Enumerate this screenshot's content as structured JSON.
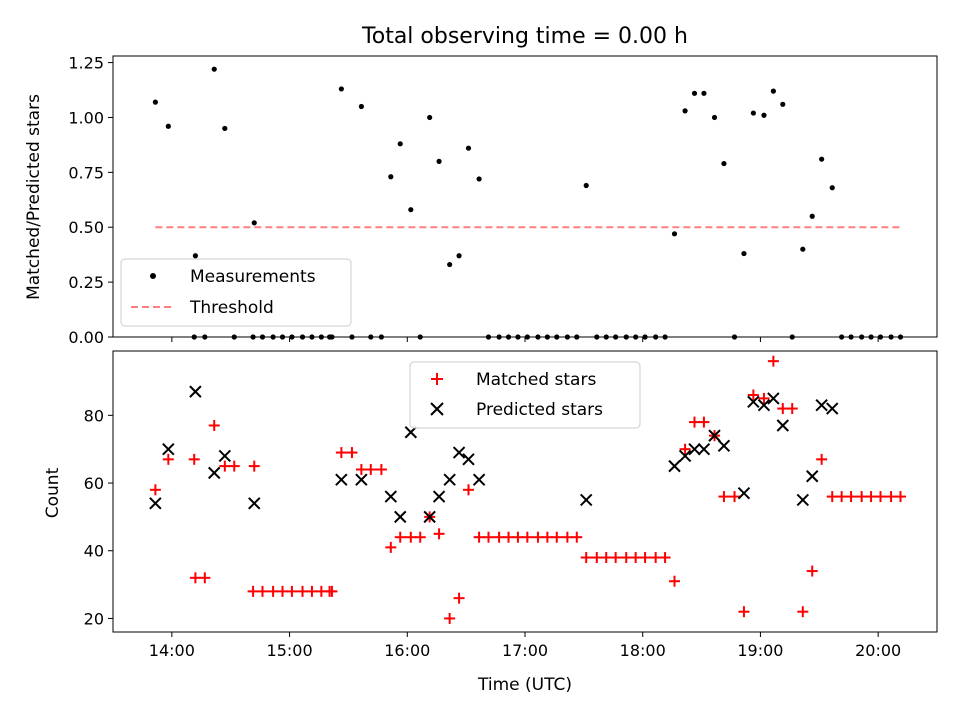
{
  "chart_data": [
    {
      "type": "scatter",
      "title": "Total observing time = 0.00 h",
      "ylabel": "Matched/Predicted stars",
      "xlabel": "",
      "xlim": [
        13.5,
        20.5
      ],
      "ylim": [
        0,
        1.28
      ],
      "yticks": [
        "0.00",
        "0.25",
        "0.50",
        "0.75",
        "1.00",
        "1.25"
      ],
      "ytick_values": [
        0,
        0.25,
        0.5,
        0.75,
        1.0,
        1.25
      ],
      "xticks": [
        14,
        15,
        16,
        17,
        18,
        19,
        20
      ],
      "xtick_labels_shown": false,
      "legend_position": "lower-left",
      "series": [
        {
          "name": "Measurements",
          "style": "dot",
          "color": "#000000",
          "x": [
            13.86,
            13.97,
            14.2,
            14.36,
            14.45,
            14.7,
            15.44,
            15.61,
            15.86,
            15.94,
            16.03,
            16.19,
            16.27,
            16.36,
            16.44,
            16.52,
            16.61,
            17.52,
            18.27,
            18.36,
            18.44,
            18.52,
            18.61,
            18.69,
            18.86,
            18.94,
            19.03,
            19.11,
            19.19,
            19.36,
            19.44,
            19.52,
            19.61,
            14.19,
            14.28,
            14.53,
            14.69,
            14.77,
            14.86,
            14.94,
            15.02,
            15.11,
            15.19,
            15.27,
            15.34,
            15.36,
            15.53,
            15.69,
            15.78,
            16.11,
            16.69,
            16.78,
            16.86,
            16.94,
            17.02,
            17.11,
            17.19,
            17.27,
            17.36,
            17.44,
            17.61,
            17.69,
            17.77,
            17.86,
            17.94,
            18.02,
            18.11,
            18.19,
            18.78,
            19.27,
            19.69,
            19.77,
            19.86,
            19.94,
            20.02,
            20.11,
            20.19
          ],
          "y": [
            1.07,
            0.96,
            0.37,
            1.22,
            0.95,
            0.52,
            1.13,
            1.05,
            0.73,
            0.88,
            0.58,
            1.0,
            0.8,
            0.33,
            0.37,
            0.86,
            0.72,
            0.69,
            0.47,
            1.03,
            1.11,
            1.11,
            1.0,
            0.79,
            0.38,
            1.02,
            1.01,
            1.12,
            1.06,
            0.4,
            0.55,
            0.81,
            0.68,
            0,
            0,
            0,
            0,
            0,
            0,
            0,
            0,
            0,
            0,
            0,
            0,
            0,
            0,
            0,
            0,
            0,
            0,
            0,
            0,
            0,
            0,
            0,
            0,
            0,
            0,
            0,
            0,
            0,
            0,
            0,
            0,
            0,
            0,
            0,
            0,
            0,
            0,
            0,
            0,
            0,
            0,
            0,
            0
          ]
        },
        {
          "name": "Threshold",
          "style": "dashed-line",
          "color": "#ff7f7f",
          "x": [
            13.86,
            20.19
          ],
          "y": [
            0.5,
            0.5
          ]
        }
      ]
    },
    {
      "type": "scatter",
      "title": "",
      "ylabel": "Count",
      "xlabel": "Time (UTC)",
      "xlim": [
        13.5,
        20.5
      ],
      "ylim": [
        16,
        99
      ],
      "yticks": [
        "20",
        "40",
        "60",
        "80"
      ],
      "ytick_values": [
        20,
        40,
        60,
        80
      ],
      "xticks": [
        14,
        15,
        16,
        17,
        18,
        19,
        20
      ],
      "xtick_labels": [
        "14:00",
        "15:00",
        "16:00",
        "17:00",
        "18:00",
        "19:00",
        "20:00"
      ],
      "legend_position": "upper-center",
      "series": [
        {
          "name": "Matched stars",
          "marker": "plus",
          "color": "#ff0000",
          "x": [
            13.86,
            13.97,
            14.19,
            14.2,
            14.28,
            14.36,
            14.45,
            14.53,
            14.69,
            14.7,
            14.77,
            14.86,
            14.94,
            15.02,
            15.11,
            15.19,
            15.27,
            15.34,
            15.36,
            15.44,
            15.53,
            15.61,
            15.69,
            15.78,
            15.86,
            15.94,
            16.03,
            16.11,
            16.19,
            16.27,
            16.36,
            16.44,
            16.52,
            16.61,
            16.69,
            16.78,
            16.86,
            16.94,
            17.02,
            17.11,
            17.19,
            17.27,
            17.36,
            17.44,
            17.52,
            17.61,
            17.69,
            17.77,
            17.86,
            17.94,
            18.02,
            18.11,
            18.19,
            18.27,
            18.36,
            18.44,
            18.52,
            18.61,
            18.69,
            18.78,
            18.86,
            18.94,
            19.03,
            19.11,
            19.19,
            19.27,
            19.36,
            19.44,
            19.52,
            19.61,
            19.69,
            19.77,
            19.86,
            19.94,
            20.02,
            20.11,
            20.19
          ],
          "y": [
            58,
            67,
            67,
            32,
            32,
            77,
            65,
            65,
            28,
            65,
            28,
            28,
            28,
            28,
            28,
            28,
            28,
            28,
            28,
            69,
            69,
            64,
            64,
            64,
            41,
            44,
            44,
            44,
            50,
            45,
            20,
            26,
            58,
            44,
            44,
            44,
            44,
            44,
            44,
            44,
            44,
            44,
            44,
            44,
            38,
            38,
            38,
            38,
            38,
            38,
            38,
            38,
            38,
            31,
            70,
            78,
            78,
            74,
            56,
            56,
            22,
            86,
            85,
            96,
            82,
            82,
            22,
            34,
            67,
            56,
            56,
            56,
            56,
            56,
            56,
            56,
            56
          ]
        },
        {
          "name": "Predicted stars",
          "marker": "x",
          "color": "#000000",
          "x": [
            13.86,
            13.97,
            14.2,
            14.36,
            14.45,
            14.7,
            15.44,
            15.61,
            15.86,
            15.94,
            16.03,
            16.19,
            16.27,
            16.36,
            16.44,
            16.52,
            16.61,
            17.52,
            18.27,
            18.36,
            18.44,
            18.52,
            18.61,
            18.69,
            18.86,
            18.94,
            19.03,
            19.11,
            19.19,
            19.36,
            19.44,
            19.52,
            19.61
          ],
          "y": [
            54,
            70,
            87,
            63,
            68,
            54,
            61,
            61,
            56,
            50,
            75,
            50,
            56,
            61,
            69,
            67,
            61,
            55,
            65,
            68,
            70,
            70,
            74,
            71,
            57,
            84,
            83,
            85,
            77,
            55,
            62,
            83,
            82
          ]
        }
      ]
    }
  ]
}
